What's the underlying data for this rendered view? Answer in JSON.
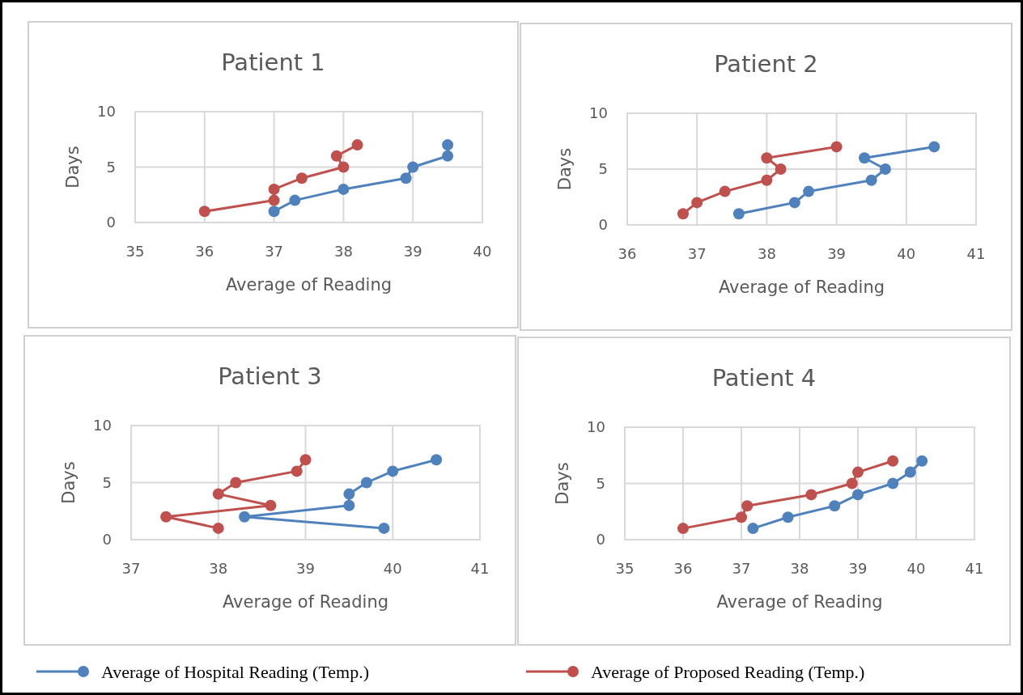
{
  "chart_data": [
    {
      "type": "line",
      "title": "Patient 1",
      "xlabel": "Average of Reading",
      "ylabel": "Days",
      "xlim": [
        35,
        40
      ],
      "xticks": [
        35,
        36,
        37,
        38,
        39,
        40
      ],
      "ylim": [
        0,
        10
      ],
      "yticks": [
        0,
        5,
        10
      ],
      "grid": true,
      "marker": "circle",
      "legend": "bottom",
      "series": [
        {
          "name": "Average of Hospital Reading (Temp.)",
          "color": "#4f81bd",
          "x": [
            37,
            37.3,
            38,
            38.9,
            39,
            39.5,
            39.5
          ],
          "values": [
            1,
            2,
            3,
            4,
            5,
            6,
            7
          ]
        },
        {
          "name": "Average of Proposed Reading (Temp.)",
          "color": "#c0504d",
          "x": [
            36,
            37,
            37,
            37.4,
            38,
            37.9,
            38.2
          ],
          "values": [
            1,
            2,
            3,
            4,
            5,
            6,
            7
          ]
        }
      ]
    },
    {
      "type": "line",
      "title": "Patient 2",
      "xlabel": "Average of Reading",
      "ylabel": "Days",
      "xlim": [
        36,
        41
      ],
      "xticks": [
        36,
        37,
        38,
        39,
        40,
        41
      ],
      "ylim": [
        0,
        10
      ],
      "yticks": [
        0,
        5,
        10
      ],
      "grid": true,
      "marker": "circle",
      "series": [
        {
          "color": "#4f81bd",
          "x": [
            37.6,
            38.4,
            38.6,
            39.5,
            39.7,
            39.4,
            40.4
          ],
          "values": [
            1,
            2,
            3,
            4,
            5,
            6,
            7
          ]
        },
        {
          "color": "#c0504d",
          "x": [
            36.8,
            37,
            37.4,
            38,
            38.2,
            38,
            39
          ],
          "values": [
            1,
            2,
            3,
            4,
            5,
            6,
            7
          ]
        }
      ]
    },
    {
      "type": "line",
      "title": "Patient 3",
      "xlabel": "Average of Reading",
      "ylabel": "Days",
      "xlim": [
        37,
        41
      ],
      "xticks": [
        37,
        38,
        39,
        40,
        41
      ],
      "ylim": [
        0,
        10
      ],
      "yticks": [
        0,
        5,
        10
      ],
      "grid": true,
      "marker": "circle",
      "series": [
        {
          "color": "#4f81bd",
          "x": [
            39.9,
            38.3,
            39.5,
            39.5,
            39.7,
            40,
            40.5
          ],
          "values": [
            1,
            2,
            3,
            4,
            5,
            6,
            7
          ]
        },
        {
          "color": "#c0504d",
          "x": [
            38,
            37.4,
            38.6,
            38,
            38.2,
            38.9,
            39
          ],
          "values": [
            1,
            2,
            3,
            4,
            5,
            6,
            7
          ]
        }
      ]
    },
    {
      "type": "line",
      "title": "Patient 4",
      "xlabel": "Average of Reading",
      "ylabel": "Days",
      "xlim": [
        35,
        41
      ],
      "xticks": [
        35,
        36,
        37,
        38,
        39,
        40,
        41
      ],
      "ylim": [
        0,
        10
      ],
      "yticks": [
        0,
        5,
        10
      ],
      "grid": true,
      "marker": "circle",
      "series": [
        {
          "color": "#4f81bd",
          "x": [
            37.2,
            37.8,
            38.6,
            39,
            39.6,
            39.9,
            40.1
          ],
          "values": [
            1,
            2,
            3,
            4,
            5,
            6,
            7
          ]
        },
        {
          "color": "#c0504d",
          "x": [
            36,
            37,
            37.1,
            38.2,
            38.9,
            39,
            39.6
          ],
          "values": [
            1,
            2,
            3,
            4,
            5,
            6,
            7
          ]
        }
      ]
    }
  ]
}
